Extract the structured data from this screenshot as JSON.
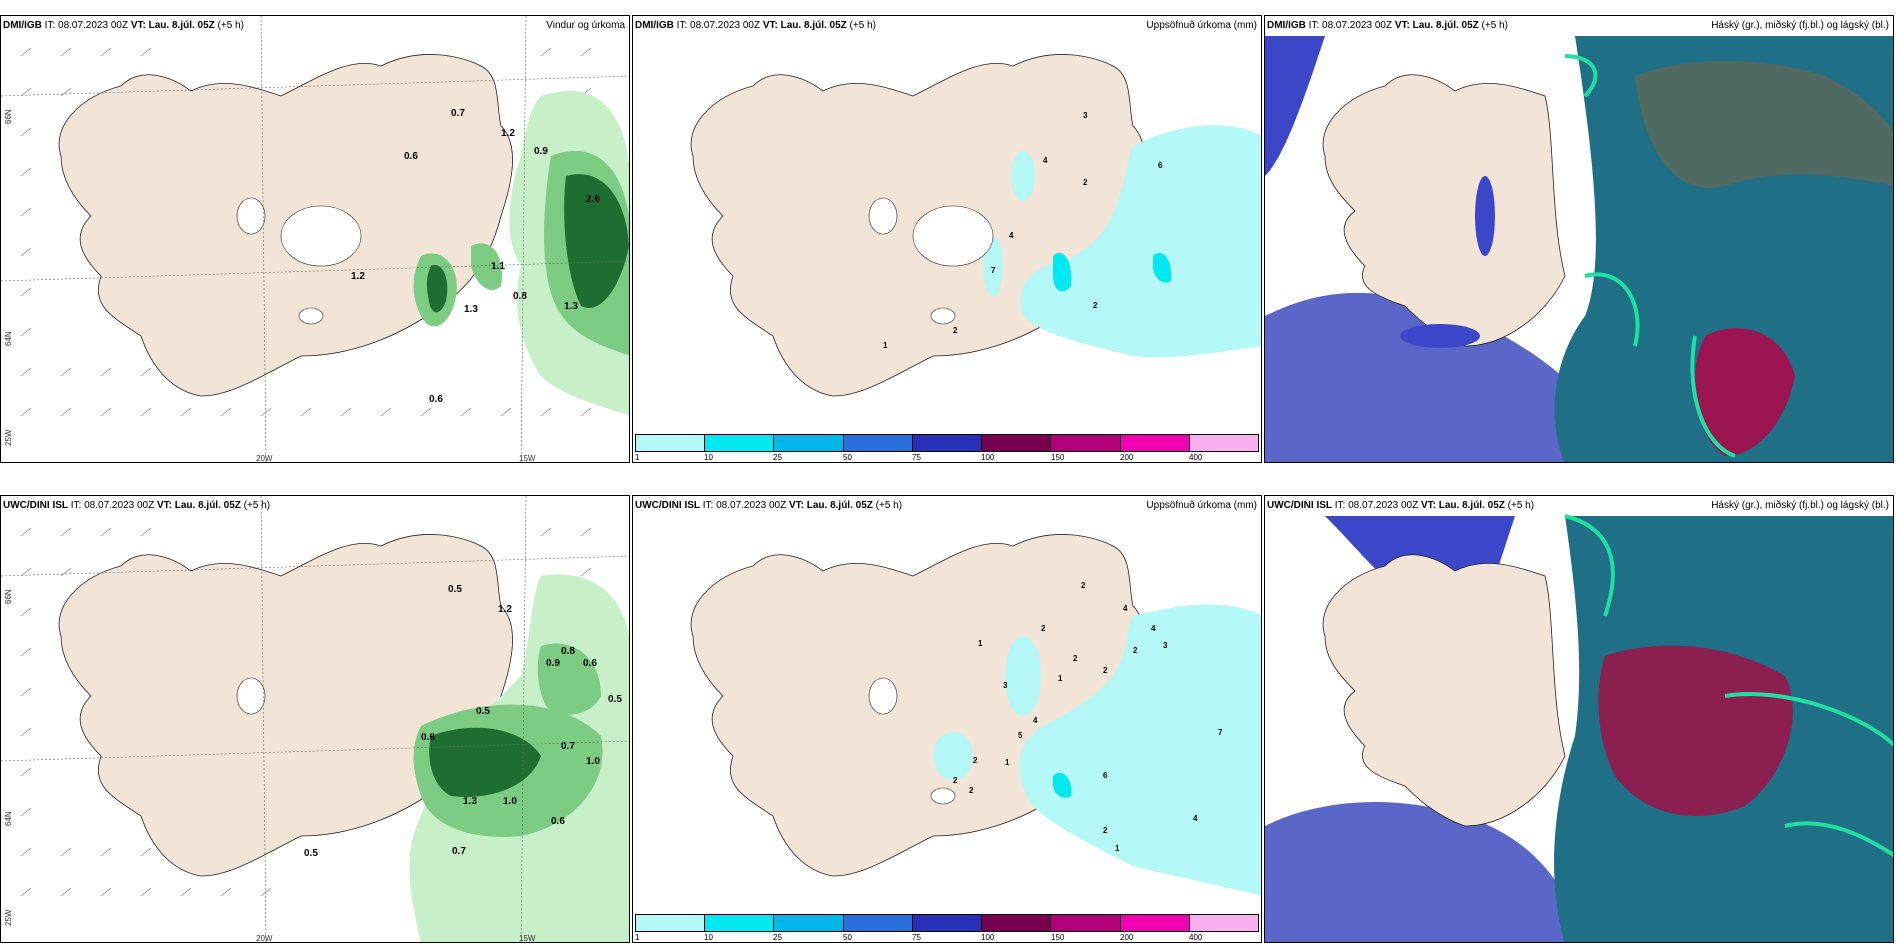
{
  "panels": [
    {
      "model": "DMI/IGB",
      "init": "IT: 08.07.2023 00Z",
      "valid": "VT: Lau. 8.júl. 05Z",
      "lead": "(+5 h)",
      "product": "Vindur og úrkoma"
    },
    {
      "model": "DMI/IGB",
      "init": "IT: 08.07.2023 00Z",
      "valid": "VT: Lau. 8.júl. 05Z",
      "lead": "(+5 h)",
      "product": "Uppsöfnuð úrkoma (mm)"
    },
    {
      "model": "DMI/IGB",
      "init": "IT: 08.07.2023 00Z",
      "valid": "VT: Lau. 8.júl. 05Z",
      "lead": "(+5 h)",
      "product": "Háský (gr.), miðský (fj.bl.) og lágský (bl.)"
    },
    {
      "model": "UWC/DINI ISL",
      "init": "IT: 08.07.2023 00Z",
      "valid": "VT: Lau. 8.júl. 05Z",
      "lead": "(+5 h)",
      "product": ""
    },
    {
      "model": "UWC/DINI ISL",
      "init": "IT: 08.07.2023 00Z",
      "valid": "VT: Lau. 8.júl. 05Z",
      "lead": "(+5 h)",
      "product": "Uppsöfnuð úrkoma (mm)"
    },
    {
      "model": "UWC/DINI ISL",
      "init": "IT: 08.07.2023 00Z",
      "valid": "VT: Lau. 8.júl. 05Z",
      "lead": "(+5 h)",
      "product": "Háský (gr.), miðský (fj.bl.) og lágský (bl.)"
    }
  ],
  "axes": {
    "lon_20": "20W",
    "lon_15": "15W",
    "lat_66": "66N",
    "lat_64": "64N",
    "lon_25": "25W"
  },
  "legend": {
    "ticks": [
      "1",
      "10",
      "25",
      "50",
      "75",
      "100",
      "150",
      "200",
      "400"
    ],
    "colors": [
      "#b4f8f8",
      "#00e8f0",
      "#00b8e8",
      "#2a6ee0",
      "#2830b8",
      "#780050",
      "#b0007a",
      "#f000b0",
      "#f8b0f0"
    ]
  },
  "colors": {
    "land": "#f2e4d6",
    "sea": "#ffffff",
    "precip_light": "#c8f0c8",
    "precip_mid": "#7ccc84",
    "precip_dark": "#1e6e32",
    "accum": "#b4f8f8",
    "high_cloud": "#5a6a5a",
    "mid_cloud": "#1f6f86",
    "low_cloud": "#3c46c8"
  },
  "top_left_values": [
    "0.7",
    "1.2",
    "0.6",
    "0.9",
    "2.6",
    "1.3",
    "1.1",
    "0.8",
    "1.3",
    "1.2",
    "0.6"
  ],
  "bottom_left_values": [
    "0.5",
    "1.2",
    "0.8",
    "0.9",
    "0.6",
    "0.5",
    "0.5",
    "0.6",
    "1.0",
    "0.7",
    "1.3",
    "1.0",
    "0.6",
    "0.7",
    "0.5"
  ],
  "top_mid_values": [
    "3",
    "4",
    "2",
    "6",
    "4",
    "7",
    "2",
    "2",
    "1"
  ],
  "bottom_mid_values": [
    "2",
    "4",
    "2",
    "4",
    "1",
    "3",
    "2",
    "2",
    "1",
    "3",
    "2",
    "7",
    "5",
    "4",
    "2",
    "1",
    "6",
    "4",
    "2",
    "1",
    "2",
    "2"
  ]
}
